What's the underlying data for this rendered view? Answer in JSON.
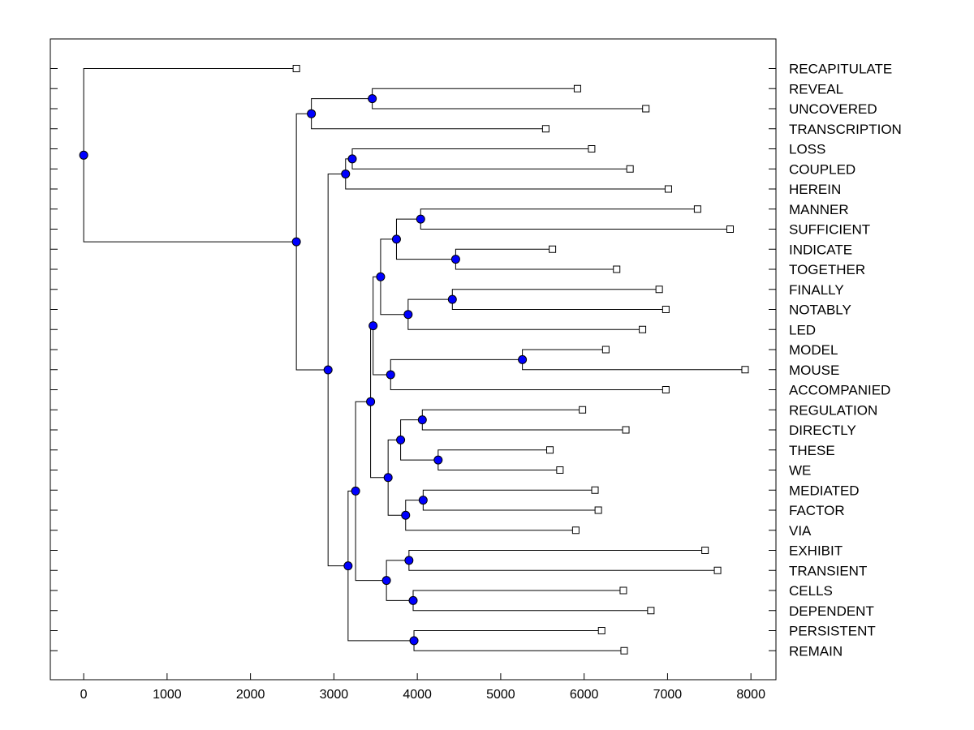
{
  "chart_data": {
    "type": "dendrogram",
    "orientation": "horizontal",
    "title": "",
    "xlabel": "",
    "ylabel": "",
    "xlim": [
      -400,
      8300
    ],
    "x_ticks": [
      0,
      1000,
      2000,
      3000,
      4000,
      5000,
      6000,
      7000,
      8000
    ],
    "x_tick_labels": [
      "0",
      "1000",
      "2000",
      "3000",
      "4000",
      "5000",
      "6000",
      "7000",
      "8000"
    ],
    "grid": false,
    "colors": {
      "node_fill": "#0000ff",
      "line": "#000000",
      "leaf_fill": "#ffffff"
    },
    "leaves": [
      {
        "label": "RECAPITULATE",
        "x": 2550
      },
      {
        "label": "REVEAL",
        "x": 5920
      },
      {
        "label": "UNCOVERED",
        "x": 6740
      },
      {
        "label": "TRANSCRIPTION",
        "x": 5540
      },
      {
        "label": "LOSS",
        "x": 6090
      },
      {
        "label": "COUPLED",
        "x": 6550
      },
      {
        "label": "HEREIN",
        "x": 7010
      },
      {
        "label": "MANNER",
        "x": 7360
      },
      {
        "label": "SUFFICIENT",
        "x": 7750
      },
      {
        "label": "INDICATE",
        "x": 5620
      },
      {
        "label": "TOGETHER",
        "x": 6390
      },
      {
        "label": "FINALLY",
        "x": 6900
      },
      {
        "label": "NOTABLY",
        "x": 6980
      },
      {
        "label": "LED",
        "x": 6700
      },
      {
        "label": "MODEL",
        "x": 6260
      },
      {
        "label": "MOUSE",
        "x": 7930
      },
      {
        "label": "ACCOMPANIED",
        "x": 6980
      },
      {
        "label": "REGULATION",
        "x": 5980
      },
      {
        "label": "DIRECTLY",
        "x": 6500
      },
      {
        "label": "THESE",
        "x": 5590
      },
      {
        "label": "WE",
        "x": 5710
      },
      {
        "label": "MEDIATED",
        "x": 6130
      },
      {
        "label": "FACTOR",
        "x": 6170
      },
      {
        "label": "VIA",
        "x": 5900
      },
      {
        "label": "EXHIBIT",
        "x": 7450
      },
      {
        "label": "TRANSIENT",
        "x": 7600
      },
      {
        "label": "CELLS",
        "x": 6470
      },
      {
        "label": "DEPENDENT",
        "x": 6800
      },
      {
        "label": "PERSISTENT",
        "x": 6210
      },
      {
        "label": "REMAIN",
        "x": 6480
      }
    ],
    "merges": [
      {
        "children": [
          "REVEAL",
          "UNCOVERED"
        ],
        "x": 3460
      },
      {
        "children": [
          1,
          "TRANSCRIPTION"
        ],
        "x": 2730
      },
      {
        "children": [
          "LOSS",
          "COUPLED"
        ],
        "x": 3220
      },
      {
        "children": [
          3,
          "HEREIN"
        ],
        "x": 3140
      },
      {
        "children": [
          "MANNER",
          "SUFFICIENT"
        ],
        "x": 4040
      },
      {
        "children": [
          "INDICATE",
          "TOGETHER"
        ],
        "x": 4460
      },
      {
        "children": [
          5,
          6
        ],
        "x": 3750
      },
      {
        "children": [
          "FINALLY",
          "NOTABLY"
        ],
        "x": 4420
      },
      {
        "children": [
          8,
          "LED"
        ],
        "x": 3890
      },
      {
        "children": [
          7,
          9
        ],
        "x": 3560
      },
      {
        "children": [
          "MODEL",
          "MOUSE"
        ],
        "x": 5260
      },
      {
        "children": [
          11,
          "ACCOMPANIED"
        ],
        "x": 3680
      },
      {
        "children": [
          10,
          12
        ],
        "x": 3470
      },
      {
        "children": [
          "REGULATION",
          "DIRECTLY"
        ],
        "x": 4060
      },
      {
        "children": [
          "THESE",
          "WE"
        ],
        "x": 4250
      },
      {
        "children": [
          14,
          15
        ],
        "x": 3800
      },
      {
        "children": [
          "MEDIATED",
          "FACTOR"
        ],
        "x": 4070
      },
      {
        "children": [
          17,
          "VIA"
        ],
        "x": 3860
      },
      {
        "children": [
          16,
          18
        ],
        "x": 3650
      },
      {
        "children": [
          13,
          19
        ],
        "x": 3440
      },
      {
        "children": [
          "EXHIBIT",
          "TRANSIENT"
        ],
        "x": 3900
      },
      {
        "children": [
          "CELLS",
          "DEPENDENT"
        ],
        "x": 3950
      },
      {
        "children": [
          21,
          22
        ],
        "x": 3630
      },
      {
        "children": [
          20,
          23
        ],
        "x": 3260
      },
      {
        "children": [
          "PERSISTENT",
          "REMAIN"
        ],
        "x": 3960
      },
      {
        "children": [
          24,
          25
        ],
        "x": 3170
      },
      {
        "children": [
          4,
          26
        ],
        "x": 2930
      },
      {
        "children": [
          2,
          27
        ],
        "x": 2550
      },
      {
        "children": [
          "RECAPITULATE",
          28
        ],
        "x": 0
      }
    ]
  }
}
